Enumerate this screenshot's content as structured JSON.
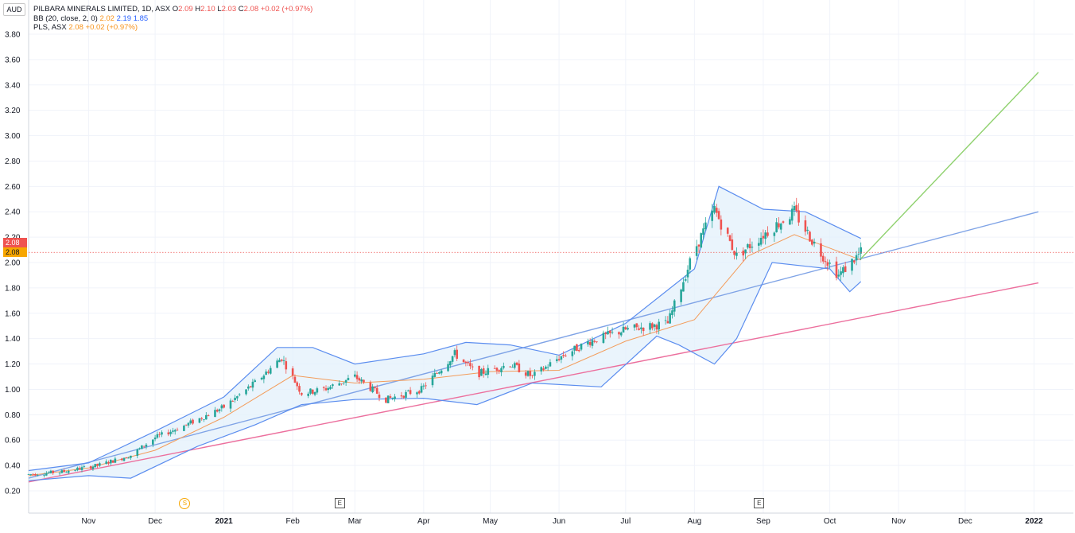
{
  "legend": {
    "symbol_title": "PILBARA MINERALS LIMITED, 1D, ASX",
    "ohlc": {
      "o_label": "O",
      "o": "2.09",
      "h_label": "H",
      "h": "2.10",
      "l_label": "L",
      "l": "2.03",
      "c_label": "C",
      "c": "2.08",
      "change": "+0.02 (+0.97%)"
    },
    "bb": {
      "label": "BB (20, close, 2, 0)",
      "basis": "2.02",
      "upper": "2.19",
      "lower": "1.85"
    },
    "pls": {
      "label": "PLS, ASX",
      "value": "2.08",
      "change": "+0.02 (+0.97%)"
    }
  },
  "unit_label": "AUD",
  "price_tags": {
    "upper": "2.08",
    "lower": "2.08"
  },
  "markers": [
    {
      "type": "S",
      "x_label": "Dec"
    },
    {
      "type": "E",
      "x_label": "Feb"
    },
    {
      "type": "E",
      "x_label": "Sep"
    }
  ],
  "colors": {
    "up": "#26a69a",
    "down": "#ef5350",
    "bb_band": "#5b8def",
    "bb_basis": "#f39c5b",
    "fill": "#e3f0fb",
    "trend_blue": "#7fa3e6",
    "trend_pink": "#ec6f9d",
    "proj_green": "#8fd16e",
    "tag_red": "#ef5350",
    "tag_orange": "#f7a600"
  },
  "chart_data": {
    "type": "candlestick",
    "title": "PILBARA MINERALS LIMITED, 1D, ASX",
    "ylabel": "AUD",
    "ylim": [
      0.15,
      3.95
    ],
    "y_ticks": [
      "0.20",
      "0.40",
      "0.60",
      "0.80",
      "1.00",
      "1.20",
      "1.40",
      "1.60",
      "1.80",
      "2.00",
      "2.20",
      "2.40",
      "2.60",
      "2.80",
      "3.00",
      "3.20",
      "3.40",
      "3.60",
      "3.80"
    ],
    "x_ticks": [
      "Nov",
      "Dec",
      "2021",
      "Feb",
      "Mar",
      "Apr",
      "May",
      "Jun",
      "Jul",
      "Aug",
      "Sep",
      "Oct",
      "Nov",
      "Dec",
      "2022"
    ],
    "date_range": [
      "2020-10-05",
      "2022-01-03"
    ],
    "price_path": [
      [
        "2020-10-05",
        0.33
      ],
      [
        "2020-10-20",
        0.35
      ],
      [
        "2020-11-05",
        0.4
      ],
      [
        "2020-11-20",
        0.48
      ],
      [
        "2020-12-01",
        0.62
      ],
      [
        "2020-12-15",
        0.72
      ],
      [
        "2021-01-01",
        0.86
      ],
      [
        "2021-01-15",
        1.05
      ],
      [
        "2021-01-27",
        1.25
      ],
      [
        "2021-02-05",
        0.97
      ],
      [
        "2021-02-15",
        1.0
      ],
      [
        "2021-03-01",
        1.1
      ],
      [
        "2021-03-15",
        0.92
      ],
      [
        "2021-03-31",
        1.0
      ],
      [
        "2021-04-15",
        1.28
      ],
      [
        "2021-04-25",
        1.12
      ],
      [
        "2021-05-10",
        1.2
      ],
      [
        "2021-05-20",
        1.1
      ],
      [
        "2021-06-01",
        1.25
      ],
      [
        "2021-06-15",
        1.38
      ],
      [
        "2021-07-01",
        1.47
      ],
      [
        "2021-07-20",
        1.52
      ],
      [
        "2021-08-01",
        2.1
      ],
      [
        "2021-08-10",
        2.42
      ],
      [
        "2021-08-20",
        2.05
      ],
      [
        "2021-09-01",
        2.22
      ],
      [
        "2021-09-15",
        2.4
      ],
      [
        "2021-09-25",
        2.12
      ],
      [
        "2021-10-05",
        1.9
      ],
      [
        "2021-10-15",
        2.08
      ]
    ],
    "bollinger": {
      "upper": [
        [
          "2020-10-05",
          0.36
        ],
        [
          "2020-11-01",
          0.42
        ],
        [
          "2020-12-01",
          0.67
        ],
        [
          "2021-01-01",
          0.94
        ],
        [
          "2021-01-25",
          1.33
        ],
        [
          "2021-02-10",
          1.33
        ],
        [
          "2021-03-01",
          1.2
        ],
        [
          "2021-04-01",
          1.28
        ],
        [
          "2021-04-20",
          1.37
        ],
        [
          "2021-05-10",
          1.35
        ],
        [
          "2021-06-01",
          1.27
        ],
        [
          "2021-07-01",
          1.52
        ],
        [
          "2021-08-01",
          1.95
        ],
        [
          "2021-08-12",
          2.6
        ],
        [
          "2021-09-01",
          2.42
        ],
        [
          "2021-09-20",
          2.4
        ],
        [
          "2021-10-15",
          2.19
        ]
      ],
      "basis": [
        [
          "2020-10-05",
          0.32
        ],
        [
          "2020-11-01",
          0.38
        ],
        [
          "2020-12-01",
          0.52
        ],
        [
          "2021-01-01",
          0.78
        ],
        [
          "2021-02-01",
          1.11
        ],
        [
          "2021-03-01",
          1.05
        ],
        [
          "2021-04-01",
          1.08
        ],
        [
          "2021-05-01",
          1.14
        ],
        [
          "2021-06-01",
          1.15
        ],
        [
          "2021-07-01",
          1.38
        ],
        [
          "2021-08-01",
          1.55
        ],
        [
          "2021-08-25",
          2.05
        ],
        [
          "2021-09-15",
          2.22
        ],
        [
          "2021-10-15",
          2.02
        ]
      ],
      "lower": [
        [
          "2020-10-05",
          0.28
        ],
        [
          "2020-11-01",
          0.32
        ],
        [
          "2020-11-20",
          0.3
        ],
        [
          "2020-12-20",
          0.55
        ],
        [
          "2021-01-15",
          0.72
        ],
        [
          "2021-02-05",
          0.88
        ],
        [
          "2021-03-01",
          0.92
        ],
        [
          "2021-04-01",
          0.93
        ],
        [
          "2021-04-25",
          0.88
        ],
        [
          "2021-05-20",
          1.05
        ],
        [
          "2021-06-20",
          1.02
        ],
        [
          "2021-07-15",
          1.42
        ],
        [
          "2021-07-25",
          1.35
        ],
        [
          "2021-08-10",
          1.2
        ],
        [
          "2021-08-20",
          1.4
        ],
        [
          "2021-09-05",
          2.0
        ],
        [
          "2021-10-01",
          1.95
        ],
        [
          "2021-10-10",
          1.77
        ],
        [
          "2021-10-15",
          1.85
        ]
      ]
    },
    "trendlines": [
      {
        "color": "blue",
        "from": [
          "2020-10-05",
          0.3
        ],
        "to": [
          "2022-01-03",
          2.4
        ]
      },
      {
        "color": "pink",
        "from": [
          "2020-10-05",
          0.27
        ],
        "to": [
          "2022-01-03",
          1.84
        ]
      },
      {
        "color": "green",
        "from": [
          "2021-10-15",
          2.03
        ],
        "to": [
          "2022-01-03",
          3.5
        ]
      }
    ],
    "last_price_line": 2.08
  }
}
